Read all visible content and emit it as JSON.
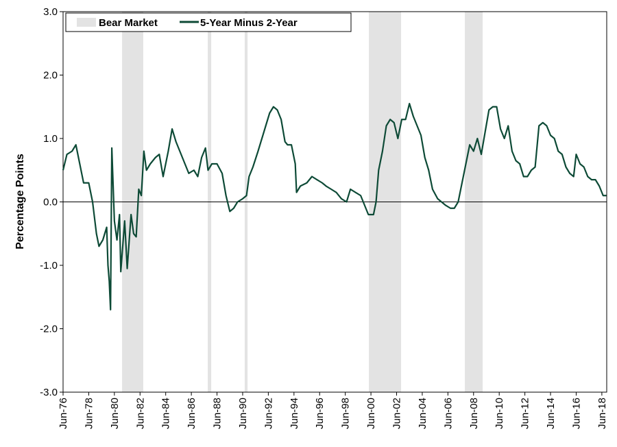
{
  "chart_data": {
    "type": "line",
    "ylabel": "Percentage Points",
    "ylim": [
      -3,
      3
    ],
    "yticks": [
      {
        "value": -3,
        "label": "-3.0"
      },
      {
        "value": -2,
        "label": "-2.0"
      },
      {
        "value": -1,
        "label": "-1.0"
      },
      {
        "value": 0,
        "label": "0.0"
      },
      {
        "value": 1,
        "label": "1.0"
      },
      {
        "value": 2,
        "label": "2.0"
      },
      {
        "value": 3,
        "label": "3.0"
      }
    ],
    "xlim": [
      1976.5,
      2018.88
    ],
    "xticks": [
      {
        "value": 1976.5,
        "label": "Jun-76"
      },
      {
        "value": 1978.5,
        "label": "Jun-78"
      },
      {
        "value": 1980.5,
        "label": "Jun-80"
      },
      {
        "value": 1982.5,
        "label": "Jun-82"
      },
      {
        "value": 1984.5,
        "label": "Jun-84"
      },
      {
        "value": 1986.5,
        "label": "Jun-86"
      },
      {
        "value": 1988.5,
        "label": "Jun-88"
      },
      {
        "value": 1990.5,
        "label": "Jun-90"
      },
      {
        "value": 1992.5,
        "label": "Jun-92"
      },
      {
        "value": 1994.5,
        "label": "Jun-94"
      },
      {
        "value": 1996.5,
        "label": "Jun-96"
      },
      {
        "value": 1998.5,
        "label": "Jun-98"
      },
      {
        "value": 2000.5,
        "label": "Jun-00"
      },
      {
        "value": 2002.5,
        "label": "Jun-02"
      },
      {
        "value": 2004.5,
        "label": "Jun-04"
      },
      {
        "value": 2006.5,
        "label": "Jun-06"
      },
      {
        "value": 2008.5,
        "label": "Jun-08"
      },
      {
        "value": 2010.5,
        "label": "Jun-10"
      },
      {
        "value": 2012.5,
        "label": "Jun-12"
      },
      {
        "value": 2014.5,
        "label": "Jun-14"
      },
      {
        "value": 2016.5,
        "label": "Jun-16"
      },
      {
        "value": 2018.5,
        "label": "Jun-18"
      }
    ],
    "bear_markets": {
      "name": "Bear Market",
      "color": "#e3e3e3",
      "ranges": [
        [
          1981.1,
          1982.75
        ],
        [
          1987.78,
          1988.05
        ],
        [
          1990.66,
          1990.88
        ],
        [
          2000.34,
          2002.85
        ],
        [
          2007.82,
          2009.21
        ]
      ]
    },
    "x": [
      1976.5,
      1976.8,
      1977.2,
      1977.5,
      1977.8,
      1978.1,
      1978.5,
      1978.8,
      1979.1,
      1979.3,
      1979.6,
      1979.9,
      1980.0,
      1980.1,
      1980.2,
      1980.3,
      1980.5,
      1980.7,
      1980.9,
      1981.0,
      1981.3,
      1981.5,
      1981.8,
      1982.0,
      1982.2,
      1982.4,
      1982.6,
      1982.8,
      1983.0,
      1983.3,
      1983.7,
      1984.0,
      1984.3,
      1984.7,
      1985.0,
      1985.3,
      1985.6,
      1986.0,
      1986.3,
      1986.7,
      1987.0,
      1987.3,
      1987.6,
      1987.8,
      1988.1,
      1988.5,
      1988.9,
      1989.2,
      1989.5,
      1989.8,
      1990.1,
      1990.5,
      1990.8,
      1991.0,
      1991.3,
      1991.7,
      1992.0,
      1992.3,
      1992.6,
      1992.9,
      1993.2,
      1993.5,
      1993.8,
      1994.0,
      1994.3,
      1994.6,
      1994.7,
      1995.0,
      1995.5,
      1995.9,
      1996.3,
      1996.7,
      1997.0,
      1997.4,
      1997.8,
      1998.2,
      1998.6,
      1998.9,
      1999.3,
      1999.7,
      2000.0,
      2000.3,
      2000.7,
      2000.9,
      2001.1,
      2001.4,
      2001.7,
      2002.0,
      2002.3,
      2002.6,
      2002.9,
      2003.2,
      2003.5,
      2003.8,
      2004.1,
      2004.4,
      2004.7,
      2005.0,
      2005.3,
      2005.7,
      2006.0,
      2006.3,
      2006.7,
      2007.0,
      2007.3,
      2007.6,
      2007.9,
      2008.2,
      2008.5,
      2008.8,
      2009.1,
      2009.4,
      2009.7,
      2010.0,
      2010.3,
      2010.6,
      2010.9,
      2011.2,
      2011.5,
      2011.8,
      2012.1,
      2012.4,
      2012.7,
      2013.0,
      2013.3,
      2013.6,
      2013.9,
      2014.2,
      2014.5,
      2014.8,
      2015.1,
      2015.4,
      2015.7,
      2016.0,
      2016.3,
      2016.5,
      2016.8,
      2017.1,
      2017.4,
      2017.7,
      2018.0,
      2018.3,
      2018.6,
      2018.85
    ],
    "series": [
      {
        "name": "5-Year Minus 2-Year",
        "color": "#0d4a36",
        "values": [
          0.5,
          0.75,
          0.8,
          0.9,
          0.6,
          0.3,
          0.3,
          0.0,
          -0.5,
          -0.7,
          -0.6,
          -0.4,
          -1.0,
          -1.25,
          -1.7,
          0.85,
          -0.3,
          -0.6,
          -0.2,
          -1.1,
          -0.3,
          -1.05,
          -0.2,
          -0.5,
          -0.55,
          0.2,
          0.1,
          0.8,
          0.5,
          0.6,
          0.7,
          0.75,
          0.4,
          0.8,
          1.15,
          0.95,
          0.8,
          0.6,
          0.45,
          0.5,
          0.4,
          0.7,
          0.85,
          0.5,
          0.6,
          0.6,
          0.45,
          0.1,
          -0.15,
          -0.1,
          0.0,
          0.05,
          0.1,
          0.4,
          0.55,
          0.8,
          1.0,
          1.2,
          1.4,
          1.5,
          1.45,
          1.3,
          0.95,
          0.9,
          0.9,
          0.6,
          0.15,
          0.25,
          0.3,
          0.4,
          0.35,
          0.3,
          0.25,
          0.2,
          0.15,
          0.05,
          0.0,
          0.2,
          0.15,
          0.1,
          -0.05,
          -0.2,
          -0.2,
          0.0,
          0.5,
          0.8,
          1.2,
          1.3,
          1.25,
          1.0,
          1.3,
          1.3,
          1.55,
          1.35,
          1.2,
          1.05,
          0.7,
          0.5,
          0.2,
          0.05,
          0.0,
          -0.05,
          -0.1,
          -0.1,
          0.0,
          0.3,
          0.6,
          0.9,
          0.8,
          1.0,
          0.75,
          1.1,
          1.45,
          1.5,
          1.5,
          1.15,
          1.0,
          1.2,
          0.8,
          0.65,
          0.6,
          0.4,
          0.4,
          0.5,
          0.55,
          1.2,
          1.25,
          1.2,
          1.05,
          1.0,
          0.8,
          0.75,
          0.55,
          0.45,
          0.4,
          0.75,
          0.6,
          0.55,
          0.4,
          0.35,
          0.35,
          0.25,
          0.1,
          0.1
        ]
      }
    ]
  }
}
